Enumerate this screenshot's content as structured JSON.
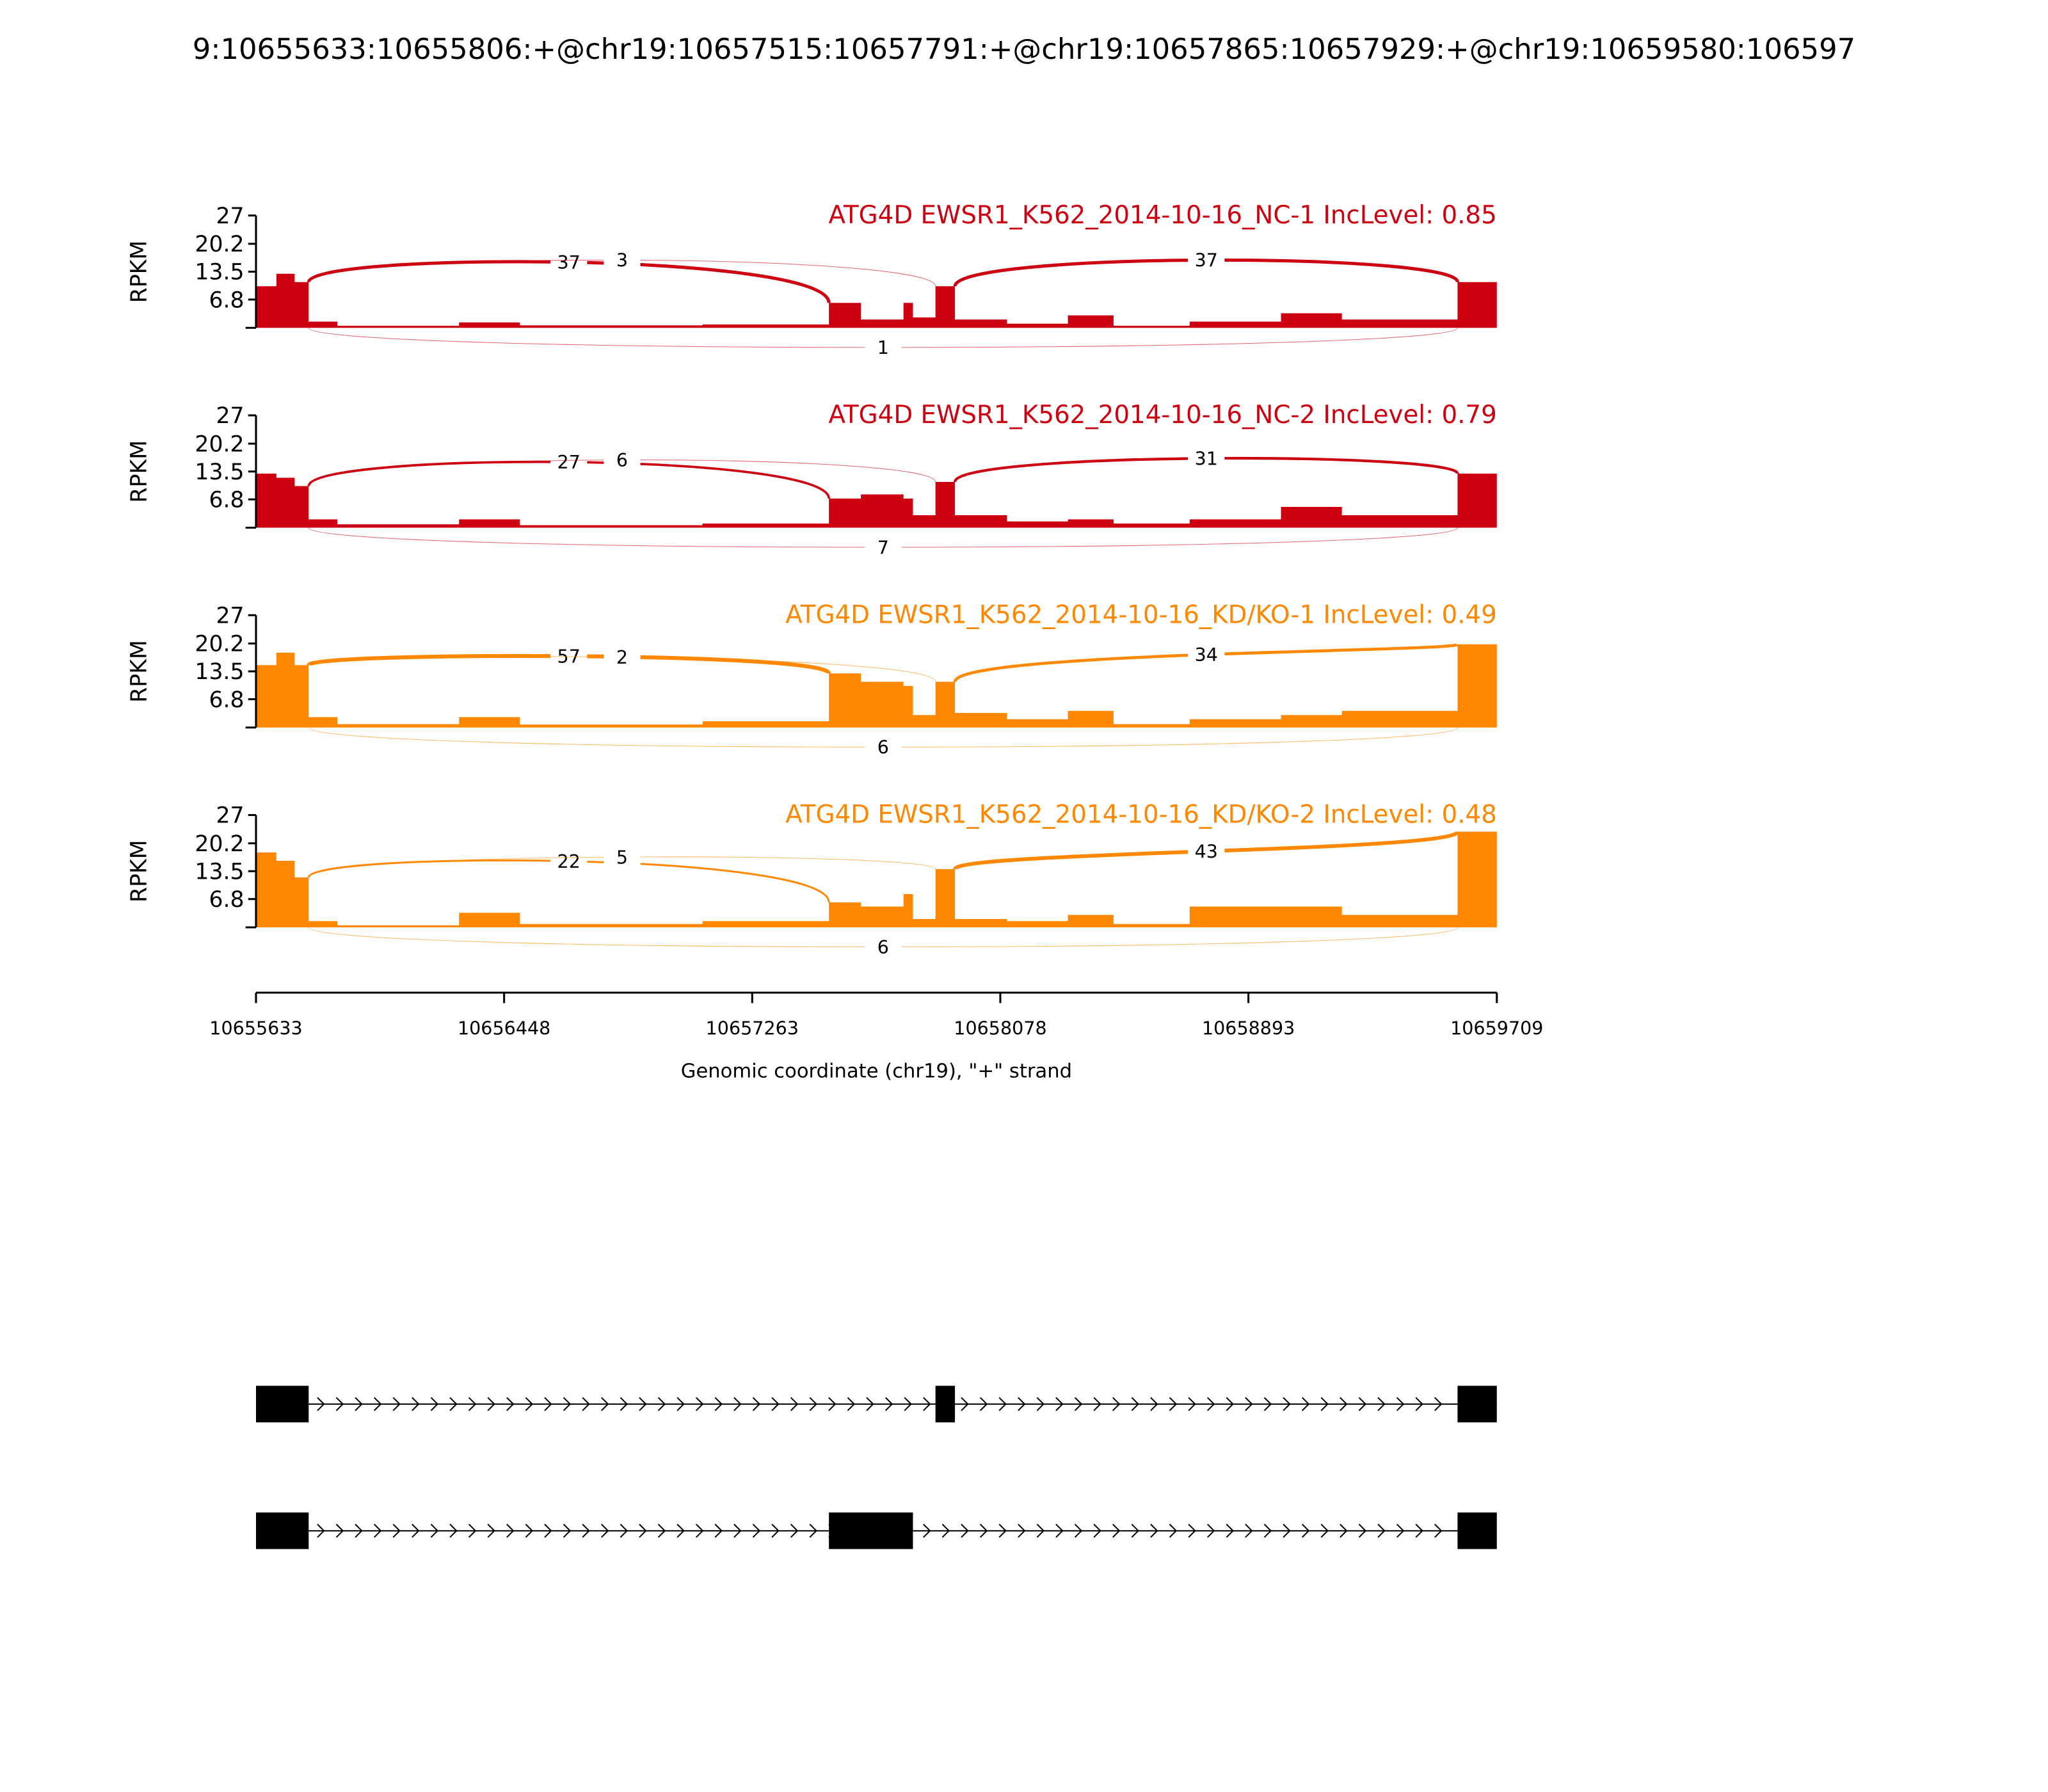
{
  "title": "9:10655633:10655806:+@chr19:10657515:10657791:+@chr19:10657865:10657929:+@chr19:10659580:106597",
  "chart_data": {
    "type": "area",
    "title": "9:10655633:10655806:+@chr19:10657515:10657791:+@chr19:10657865:10657929:+@chr19:10659580:106597",
    "xlabel": "Genomic coordinate (chr19), \"+\" strand",
    "ylabel": "RPKM",
    "xlim": [
      10655633,
      10659709
    ],
    "ylim": [
      0,
      27
    ],
    "xticks": [
      "10655633",
      "10656448",
      "10657263",
      "10658078",
      "10658893",
      "10659709"
    ],
    "yticks": [
      "6.8",
      "13.5",
      "20.2",
      "27"
    ],
    "bin_edges": [
      10655633,
      10655700,
      10655760,
      10655806,
      10655900,
      10656300,
      10656500,
      10657100,
      10657515,
      10657620,
      10657760,
      10657791,
      10657865,
      10657929,
      10658100,
      10658300,
      10658450,
      10658700,
      10659000,
      10659200,
      10659580,
      10659709
    ],
    "series": [
      {
        "name": "ATG4D EWSR1_K562_2014-10-16_NC-1 IncLevel: 0.85",
        "color": "#cc0011",
        "coverage": [
          10,
          13,
          11,
          1.5,
          0.5,
          1.3,
          0.6,
          0.8,
          6,
          2,
          6,
          2.5,
          10,
          2,
          1,
          3,
          0.5,
          1.5,
          3.5,
          2,
          11
        ],
        "junctions": [
          {
            "from": 10655806,
            "to": 10657515,
            "count": "37",
            "side": "above"
          },
          {
            "from": 10655806,
            "to": 10657865,
            "count": "3",
            "side": "above"
          },
          {
            "from": 10657929,
            "to": 10659580,
            "count": "37",
            "side": "above"
          },
          {
            "from": 10655806,
            "to": 10659580,
            "count": "1",
            "side": "below"
          }
        ]
      },
      {
        "name": "ATG4D EWSR1_K562_2014-10-16_NC-2 IncLevel: 0.79",
        "color": "#cc0011",
        "coverage": [
          13,
          12,
          10,
          2,
          0.8,
          2,
          0.6,
          1,
          7,
          8,
          7,
          3,
          11,
          3,
          1.5,
          2,
          1,
          2,
          5,
          3,
          13
        ],
        "junctions": [
          {
            "from": 10655806,
            "to": 10657515,
            "count": "27",
            "side": "above"
          },
          {
            "from": 10655806,
            "to": 10657865,
            "count": "6",
            "side": "above"
          },
          {
            "from": 10657929,
            "to": 10659580,
            "count": "31",
            "side": "above"
          },
          {
            "from": 10655806,
            "to": 10659580,
            "count": "7",
            "side": "below"
          }
        ]
      },
      {
        "name": "ATG4D EWSR1_K562_2014-10-16_KD/KO-1 IncLevel: 0.49",
        "color": "#ff8800",
        "coverage": [
          15,
          18,
          15,
          2.5,
          0.8,
          2.5,
          0.7,
          1.5,
          13,
          11,
          10,
          3,
          11,
          3.5,
          2,
          4,
          0.8,
          2,
          3,
          4,
          20
        ],
        "junctions": [
          {
            "from": 10655806,
            "to": 10657515,
            "count": "57",
            "side": "above"
          },
          {
            "from": 10655806,
            "to": 10657865,
            "count": "2",
            "side": "above"
          },
          {
            "from": 10657929,
            "to": 10659580,
            "count": "34",
            "side": "above"
          },
          {
            "from": 10655806,
            "to": 10659580,
            "count": "6",
            "side": "below"
          }
        ]
      },
      {
        "name": "ATG4D EWSR1_K562_2014-10-16_KD/KO-2 IncLevel: 0.48",
        "color": "#ff8800",
        "coverage": [
          18,
          16,
          12,
          1.5,
          0.5,
          3.5,
          0.8,
          1.5,
          6,
          5,
          8,
          2,
          14,
          2,
          1.5,
          3,
          0.8,
          5,
          5,
          3,
          23
        ],
        "junctions": [
          {
            "from": 10655806,
            "to": 10657515,
            "count": "22",
            "side": "above"
          },
          {
            "from": 10655806,
            "to": 10657865,
            "count": "5",
            "side": "above"
          },
          {
            "from": 10657929,
            "to": 10659580,
            "count": "43",
            "side": "above"
          },
          {
            "from": 10655806,
            "to": 10659580,
            "count": "6",
            "side": "below"
          }
        ]
      }
    ],
    "isoforms": [
      {
        "exons": [
          [
            10655633,
            10655806
          ],
          [
            10657865,
            10657929
          ],
          [
            10659580,
            10659709
          ]
        ]
      },
      {
        "exons": [
          [
            10655633,
            10655806
          ],
          [
            10657515,
            10657791
          ],
          [
            10659580,
            10659709
          ]
        ]
      }
    ]
  }
}
